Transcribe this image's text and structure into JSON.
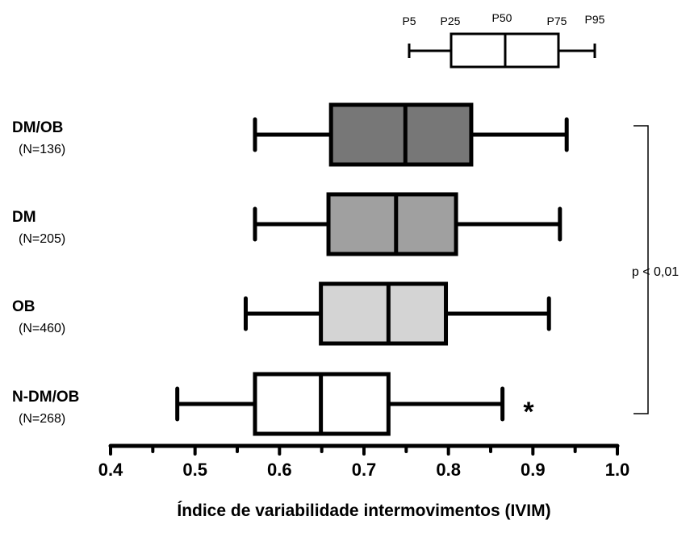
{
  "chart_data": {
    "type": "box",
    "orientation": "horizontal",
    "xlabel": "Índice de variabilidade intermovimentos (IVIM)",
    "xlim": [
      0.4,
      1.0
    ],
    "xticks": [
      "0.4",
      "0.5",
      "0.6",
      "0.7",
      "0.8",
      "0.9",
      "1.0"
    ],
    "legend": {
      "labels": [
        "P5",
        "P25",
        "P50",
        "P75",
        "P95"
      ],
      "placement": "top-right"
    },
    "groups": [
      {
        "name": "DM/OB",
        "n_label": "(N=136)",
        "p5": 0.571,
        "p25": 0.661,
        "p50": 0.749,
        "p75": 0.827,
        "p95": 0.94,
        "fill": "#777777"
      },
      {
        "name": "DM",
        "n_label": "(N=205)",
        "p5": 0.571,
        "p25": 0.658,
        "p50": 0.738,
        "p75": 0.809,
        "p95": 0.932,
        "fill": "#a0a0a0"
      },
      {
        "name": "OB",
        "n_label": "(N=460)",
        "p5": 0.56,
        "p25": 0.649,
        "p50": 0.729,
        "p75": 0.797,
        "p95": 0.919,
        "fill": "#d4d4d4"
      },
      {
        "name": "N-DM/OB",
        "n_label": "(N=268)",
        "p5": 0.479,
        "p25": 0.571,
        "p50": 0.649,
        "p75": 0.729,
        "p95": 0.864,
        "fill": "#ffffff",
        "annotation": "*"
      }
    ],
    "bracket_label": "p < 0,01"
  }
}
